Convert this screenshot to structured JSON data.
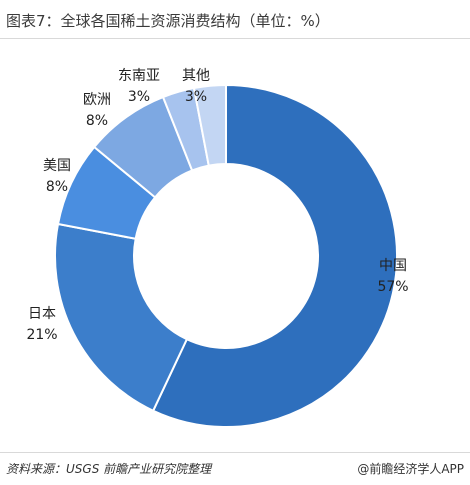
{
  "header": {
    "title": "图表7：全球各国稀土资源消费结构（单位：%）"
  },
  "chart_data": {
    "type": "pie",
    "donut": true,
    "title": "图表7：全球各国稀土资源消费结构（单位：%）",
    "unit": "%",
    "categories": [
      "中国",
      "日本",
      "美国",
      "欧洲",
      "东南亚",
      "其他"
    ],
    "values": [
      57,
      21,
      8,
      8,
      3,
      3
    ],
    "value_labels": [
      "57%",
      "21%",
      "8%",
      "8%",
      "3%",
      "3%"
    ],
    "colors": [
      "#2e6fbd",
      "#3c7ecb",
      "#4a8ee0",
      "#7da8e2",
      "#a7c3ee",
      "#c3d6f3"
    ]
  },
  "footer": {
    "source": "资料来源：USGS  前瞻产业研究院整理",
    "credit": "@前瞻经济学人APP"
  }
}
